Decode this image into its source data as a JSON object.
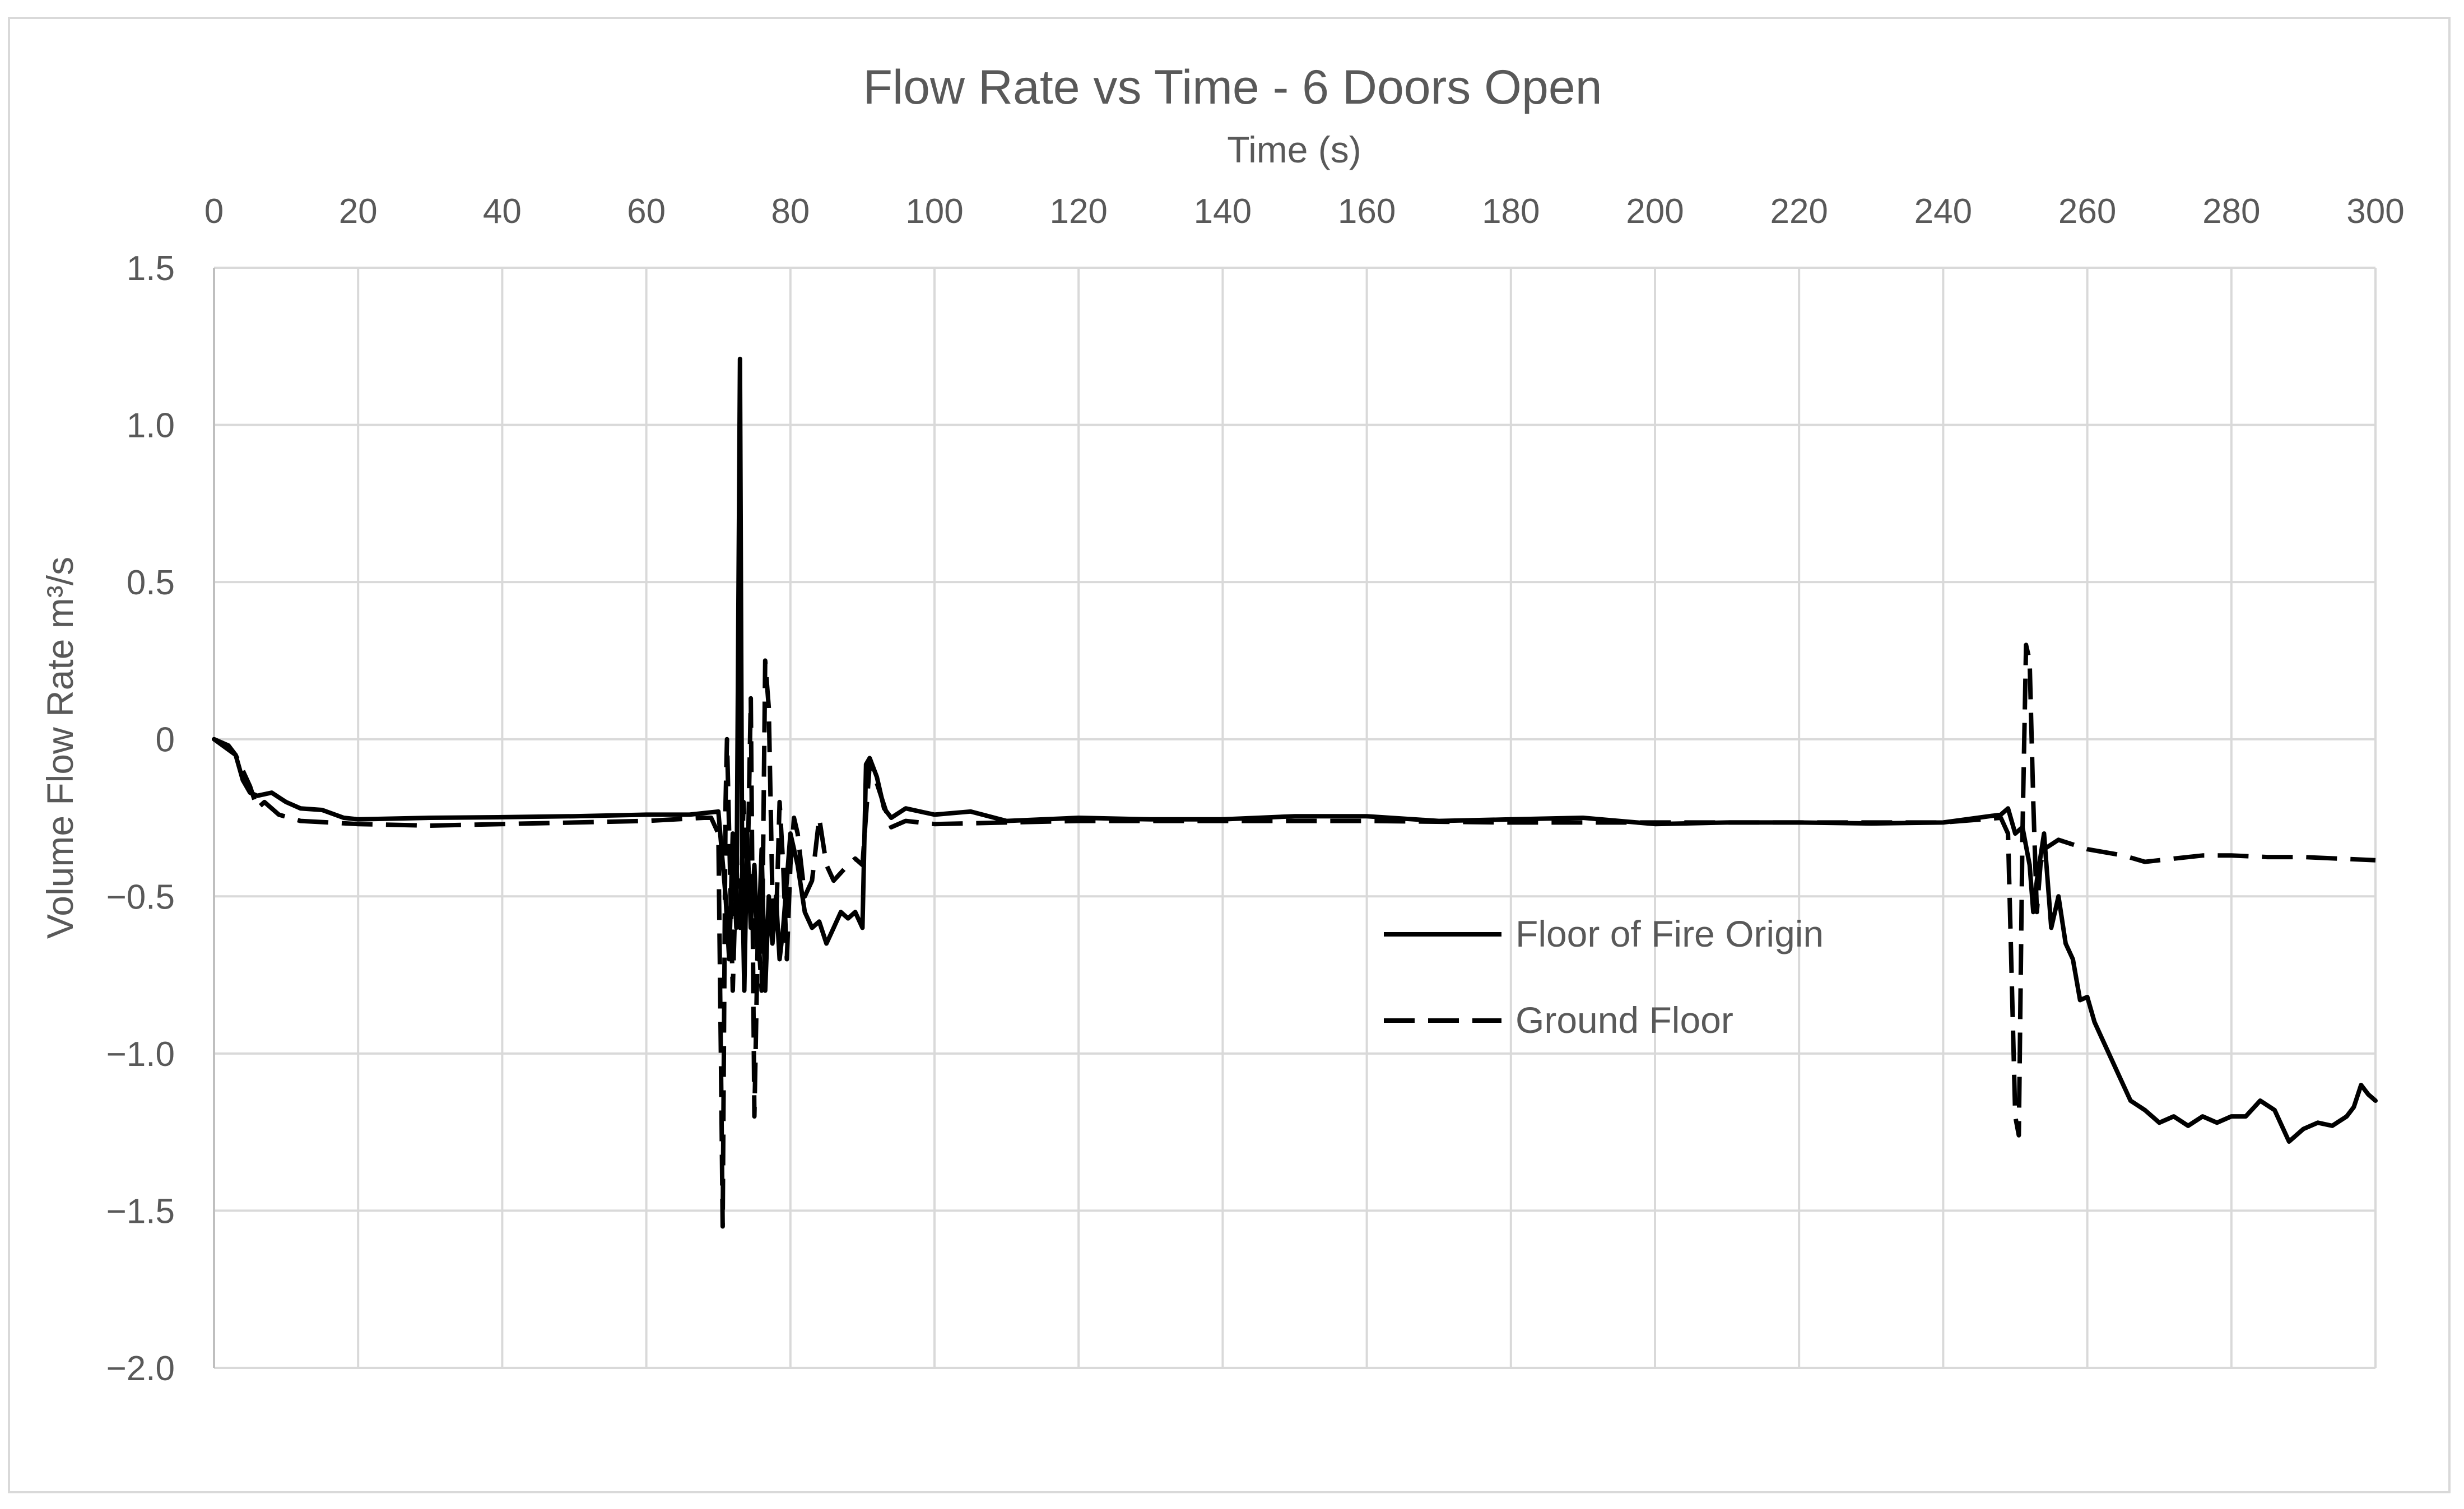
{
  "chart_data": {
    "type": "line",
    "title": "Flow Rate vs Time - 6 Doors Open",
    "xlabel": "Time (s)",
    "ylabel": "Volume Flow Rate m³/s",
    "xlim": [
      0,
      300
    ],
    "ylim": [
      -2.0,
      1.5
    ],
    "x_ticks": [
      0,
      20,
      40,
      60,
      80,
      100,
      120,
      140,
      160,
      180,
      200,
      220,
      240,
      260,
      280,
      300
    ],
    "x_tick_labels": [
      "0",
      "20",
      "40",
      "60",
      "80",
      "100",
      "120",
      "140",
      "160",
      "180",
      "200",
      "220",
      "240",
      "260",
      "280",
      "300"
    ],
    "y_ticks": [
      1.5,
      1.0,
      0.5,
      0,
      -0.5,
      -1.0,
      -1.5,
      -2.0
    ],
    "y_tick_labels": [
      "1.5",
      "1.0",
      "0.5",
      "0",
      "−0.5",
      "−1.0",
      "−1.5",
      "−2.0"
    ],
    "x_axis_position": "top",
    "grid": true,
    "legend_position": "center-right",
    "series": [
      {
        "name": "Floor of Fire Origin",
        "style": "solid",
        "color": "#000000",
        "points": [
          [
            0,
            0
          ],
          [
            2,
            -0.02
          ],
          [
            3,
            -0.05
          ],
          [
            4,
            -0.13
          ],
          [
            5,
            -0.17
          ],
          [
            6,
            -0.18
          ],
          [
            8,
            -0.17
          ],
          [
            10,
            -0.2
          ],
          [
            12,
            -0.22
          ],
          [
            15,
            -0.225
          ],
          [
            18,
            -0.25
          ],
          [
            20,
            -0.255
          ],
          [
            30,
            -0.25
          ],
          [
            40,
            -0.248
          ],
          [
            50,
            -0.245
          ],
          [
            60,
            -0.24
          ],
          [
            66,
            -0.24
          ],
          [
            70,
            -0.23
          ],
          [
            71,
            -0.5
          ],
          [
            71.5,
            -0.7
          ],
          [
            72,
            -0.3
          ],
          [
            72.5,
            -0.6
          ],
          [
            73,
            1.21
          ],
          [
            73.3,
            -0.4
          ],
          [
            73.6,
            -0.8
          ],
          [
            74,
            -0.3
          ],
          [
            74.5,
            -0.6
          ],
          [
            75,
            -0.4
          ],
          [
            75.5,
            -0.7
          ],
          [
            76,
            -0.35
          ],
          [
            76.5,
            -0.8
          ],
          [
            77,
            -0.5
          ],
          [
            77.5,
            -0.65
          ],
          [
            78,
            -0.5
          ],
          [
            78.5,
            -0.7
          ],
          [
            79,
            -0.6
          ],
          [
            80,
            -0.3
          ],
          [
            81,
            -0.4
          ],
          [
            82,
            -0.55
          ],
          [
            83,
            -0.6
          ],
          [
            84,
            -0.58
          ],
          [
            85,
            -0.65
          ],
          [
            86,
            -0.6
          ],
          [
            87,
            -0.55
          ],
          [
            88,
            -0.57
          ],
          [
            89,
            -0.55
          ],
          [
            90,
            -0.6
          ],
          [
            90.5,
            -0.08
          ],
          [
            91,
            -0.06
          ],
          [
            92,
            -0.12
          ],
          [
            93,
            -0.22
          ],
          [
            94,
            -0.25
          ],
          [
            96,
            -0.22
          ],
          [
            100,
            -0.24
          ],
          [
            105,
            -0.23
          ],
          [
            110,
            -0.26
          ],
          [
            120,
            -0.25
          ],
          [
            130,
            -0.255
          ],
          [
            140,
            -0.255
          ],
          [
            150,
            -0.245
          ],
          [
            160,
            -0.245
          ],
          [
            170,
            -0.26
          ],
          [
            180,
            -0.255
          ],
          [
            190,
            -0.25
          ],
          [
            200,
            -0.27
          ],
          [
            210,
            -0.265
          ],
          [
            220,
            -0.265
          ],
          [
            230,
            -0.268
          ],
          [
            240,
            -0.265
          ],
          [
            248,
            -0.24
          ],
          [
            249,
            -0.22
          ],
          [
            250,
            -0.3
          ],
          [
            251,
            -0.28
          ],
          [
            252,
            -0.4
          ],
          [
            252.5,
            -0.55
          ],
          [
            253,
            -0.45
          ],
          [
            254,
            -0.3
          ],
          [
            255,
            -0.6
          ],
          [
            256,
            -0.5
          ],
          [
            257,
            -0.65
          ],
          [
            258,
            -0.7
          ],
          [
            259,
            -0.83
          ],
          [
            260,
            -0.82
          ],
          [
            261,
            -0.9
          ],
          [
            262,
            -0.95
          ],
          [
            264,
            -1.05
          ],
          [
            266,
            -1.15
          ],
          [
            268,
            -1.18
          ],
          [
            270,
            -1.22
          ],
          [
            272,
            -1.2
          ],
          [
            274,
            -1.23
          ],
          [
            276,
            -1.2
          ],
          [
            278,
            -1.22
          ],
          [
            280,
            -1.2
          ],
          [
            282,
            -1.2
          ],
          [
            284,
            -1.15
          ],
          [
            286,
            -1.18
          ],
          [
            288,
            -1.28
          ],
          [
            290,
            -1.24
          ],
          [
            292,
            -1.22
          ],
          [
            294,
            -1.23
          ],
          [
            296,
            -1.2
          ],
          [
            297,
            -1.17
          ],
          [
            298,
            -1.1
          ],
          [
            299,
            -1.13
          ],
          [
            300,
            -1.15
          ]
        ]
      },
      {
        "name": "Ground Floor",
        "style": "dashed",
        "color": "#000000",
        "points": [
          [
            0,
            0
          ],
          [
            3,
            -0.05
          ],
          [
            5,
            -0.15
          ],
          [
            6,
            -0.22
          ],
          [
            7,
            -0.2
          ],
          [
            9,
            -0.24
          ],
          [
            12,
            -0.26
          ],
          [
            20,
            -0.27
          ],
          [
            30,
            -0.275
          ],
          [
            40,
            -0.27
          ],
          [
            50,
            -0.265
          ],
          [
            60,
            -0.26
          ],
          [
            68,
            -0.25
          ],
          [
            69,
            -0.25
          ],
          [
            70,
            -0.3
          ],
          [
            70.4,
            -1.1
          ],
          [
            70.6,
            -1.55
          ],
          [
            71,
            -0.2
          ],
          [
            71.2,
            0
          ],
          [
            71.5,
            -0.3
          ],
          [
            72,
            -0.8
          ],
          [
            72.5,
            -0.4
          ],
          [
            73,
            -0.6
          ],
          [
            73.5,
            -0.2
          ],
          [
            74,
            -0.5
          ],
          [
            74.5,
            0.13
          ],
          [
            75,
            -1.2
          ],
          [
            75.5,
            -0.6
          ],
          [
            76,
            -0.8
          ],
          [
            76.5,
            0.25
          ],
          [
            77,
            0.1
          ],
          [
            77.5,
            -0.5
          ],
          [
            78,
            -0.6
          ],
          [
            78.5,
            -0.2
          ],
          [
            79,
            -0.4
          ],
          [
            79.5,
            -0.7
          ],
          [
            80,
            -0.4
          ],
          [
            80.5,
            -0.25
          ],
          [
            81,
            -0.3
          ],
          [
            82,
            -0.5
          ],
          [
            83,
            -0.45
          ],
          [
            84,
            -0.25
          ],
          [
            85,
            -0.4
          ],
          [
            86,
            -0.45
          ],
          [
            88,
            -0.4
          ],
          [
            89,
            -0.38
          ],
          [
            90,
            -0.4
          ],
          [
            91,
            -0.08
          ],
          [
            92,
            -0.14
          ],
          [
            94,
            -0.28
          ],
          [
            96,
            -0.26
          ],
          [
            100,
            -0.27
          ],
          [
            110,
            -0.265
          ],
          [
            120,
            -0.26
          ],
          [
            140,
            -0.26
          ],
          [
            160,
            -0.26
          ],
          [
            180,
            -0.265
          ],
          [
            200,
            -0.265
          ],
          [
            220,
            -0.265
          ],
          [
            240,
            -0.265
          ],
          [
            248,
            -0.25
          ],
          [
            249,
            -0.3
          ],
          [
            250,
            -1.2
          ],
          [
            250.5,
            -1.26
          ],
          [
            251,
            -0.3
          ],
          [
            251.5,
            0.3
          ],
          [
            252,
            0.25
          ],
          [
            252.5,
            -0.2
          ],
          [
            253,
            -0.55
          ],
          [
            253.5,
            -0.4
          ],
          [
            254,
            -0.35
          ],
          [
            256,
            -0.32
          ],
          [
            260,
            -0.35
          ],
          [
            265,
            -0.37
          ],
          [
            268,
            -0.39
          ],
          [
            272,
            -0.38
          ],
          [
            276,
            -0.37
          ],
          [
            280,
            -0.37
          ],
          [
            285,
            -0.375
          ],
          [
            290,
            -0.375
          ],
          [
            295,
            -0.38
          ],
          [
            300,
            -0.385
          ]
        ]
      }
    ]
  }
}
